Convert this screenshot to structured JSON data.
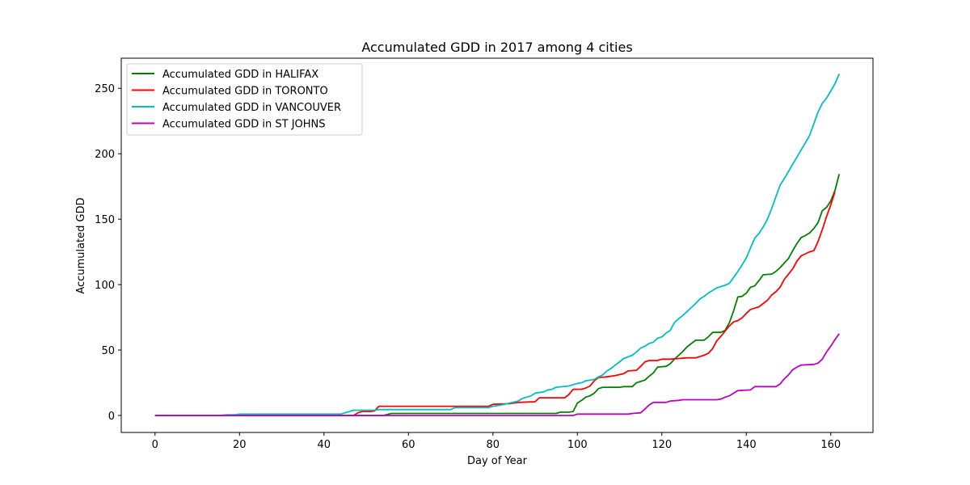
{
  "chart_data": {
    "type": "line",
    "title": "Accumulated GDD in 2017 among 4 cities",
    "xlabel": "Day of Year",
    "ylabel": "Accumulated GDD",
    "xlim": [
      -8,
      170
    ],
    "ylim": [
      -13,
      273
    ],
    "xticks": [
      0,
      20,
      40,
      60,
      80,
      100,
      120,
      140,
      160
    ],
    "yticks": [
      0,
      50,
      100,
      150,
      200,
      250
    ],
    "grid": false,
    "legend_position": "top-left",
    "series": [
      {
        "name": "Accumulated GDD in  HALIFAX",
        "color": "#008000",
        "points": [
          [
            0,
            0
          ],
          [
            54,
            0
          ],
          [
            56,
            1.5
          ],
          [
            95,
            1.5
          ],
          [
            96,
            2.5
          ],
          [
            98,
            2.5
          ],
          [
            99,
            3
          ],
          [
            100,
            9.5
          ],
          [
            101,
            11.5
          ],
          [
            102,
            14
          ],
          [
            103,
            15
          ],
          [
            104,
            17
          ],
          [
            105,
            20.5
          ],
          [
            106,
            21.5
          ],
          [
            110,
            21.5
          ],
          [
            111,
            22
          ],
          [
            113,
            22
          ],
          [
            114,
            25
          ],
          [
            116,
            27
          ],
          [
            117,
            30
          ],
          [
            118,
            32.5
          ],
          [
            119,
            37
          ],
          [
            121,
            37.5
          ],
          [
            122,
            39.5
          ],
          [
            123,
            43
          ],
          [
            124,
            46
          ],
          [
            125,
            49
          ],
          [
            126,
            52.5
          ],
          [
            127,
            55
          ],
          [
            128,
            57.5
          ],
          [
            130,
            57.5
          ],
          [
            131,
            60
          ],
          [
            132,
            63.5
          ],
          [
            134,
            63.5
          ],
          [
            135,
            65
          ],
          [
            136,
            71
          ],
          [
            137,
            80
          ],
          [
            138,
            90.5
          ],
          [
            139,
            91
          ],
          [
            140,
            93.5
          ],
          [
            141,
            98
          ],
          [
            142,
            99
          ],
          [
            143,
            103
          ],
          [
            144,
            107.5
          ],
          [
            146,
            108
          ],
          [
            147,
            110
          ],
          [
            148,
            113
          ],
          [
            149,
            116.5
          ],
          [
            150,
            120
          ],
          [
            151,
            126
          ],
          [
            152,
            131.5
          ],
          [
            153,
            136
          ],
          [
            154,
            137.5
          ],
          [
            155,
            139.5
          ],
          [
            156,
            143
          ],
          [
            157,
            147.5
          ],
          [
            158,
            156.5
          ],
          [
            159,
            159
          ],
          [
            160,
            164
          ],
          [
            161,
            172
          ],
          [
            162,
            184.5
          ]
        ]
      },
      {
        "name": "Accumulated GDD in  TORONTO",
        "color": "#ff0000",
        "points": [
          [
            0,
            0
          ],
          [
            47,
            0
          ],
          [
            48,
            2
          ],
          [
            49,
            3
          ],
          [
            51,
            3
          ],
          [
            52,
            3.5
          ],
          [
            53,
            7
          ],
          [
            79,
            7
          ],
          [
            80,
            8.5
          ],
          [
            84,
            9
          ],
          [
            86,
            10
          ],
          [
            90,
            10.5
          ],
          [
            91,
            13.5
          ],
          [
            97,
            13.5
          ],
          [
            98,
            16
          ],
          [
            99,
            20
          ],
          [
            101,
            20
          ],
          [
            102,
            21
          ],
          [
            103,
            22.5
          ],
          [
            104,
            26.5
          ],
          [
            105,
            29
          ],
          [
            107,
            29.5
          ],
          [
            109,
            30.5
          ],
          [
            111,
            32
          ],
          [
            112,
            34
          ],
          [
            114,
            34.5
          ],
          [
            115,
            37.5
          ],
          [
            116,
            41
          ],
          [
            117,
            42
          ],
          [
            119,
            42
          ],
          [
            120,
            43
          ],
          [
            122,
            43
          ],
          [
            124,
            43.5
          ],
          [
            126,
            44
          ],
          [
            128,
            44
          ],
          [
            129,
            45
          ],
          [
            130,
            46
          ],
          [
            131,
            47.5
          ],
          [
            132,
            51
          ],
          [
            133,
            57
          ],
          [
            134,
            60.5
          ],
          [
            135,
            64.5
          ],
          [
            136,
            68.5
          ],
          [
            137,
            71.5
          ],
          [
            138,
            72.5
          ],
          [
            139,
            74.5
          ],
          [
            140,
            78
          ],
          [
            141,
            81
          ],
          [
            142,
            82
          ],
          [
            143,
            83
          ],
          [
            144,
            85.5
          ],
          [
            145,
            88
          ],
          [
            146,
            92
          ],
          [
            147,
            94.5
          ],
          [
            148,
            98
          ],
          [
            149,
            104
          ],
          [
            150,
            108
          ],
          [
            151,
            112
          ],
          [
            152,
            118
          ],
          [
            153,
            122
          ],
          [
            154,
            123.5
          ],
          [
            155,
            125
          ],
          [
            156,
            126
          ],
          [
            157,
            133
          ],
          [
            158,
            142
          ],
          [
            159,
            152
          ],
          [
            160,
            161
          ],
          [
            161,
            171
          ]
        ]
      },
      {
        "name": "Accumulated GDD in  VANCOUVER",
        "color": "#00bfbf",
        "points": [
          [
            0,
            0
          ],
          [
            15,
            0
          ],
          [
            17,
            0.5
          ],
          [
            19,
            0.5
          ],
          [
            20,
            1
          ],
          [
            44,
            1
          ],
          [
            46,
            3
          ],
          [
            47,
            4
          ],
          [
            52,
            4
          ],
          [
            53,
            4.5
          ],
          [
            70,
            4.5
          ],
          [
            71,
            6
          ],
          [
            79,
            6
          ],
          [
            80,
            7
          ],
          [
            82,
            8
          ],
          [
            84,
            9.5
          ],
          [
            86,
            11
          ],
          [
            87,
            13
          ],
          [
            88,
            14
          ],
          [
            89,
            15
          ],
          [
            90,
            17
          ],
          [
            92,
            18
          ],
          [
            93,
            19.5
          ],
          [
            94,
            20
          ],
          [
            95,
            21.5
          ],
          [
            98,
            22.5
          ],
          [
            100,
            24.5
          ],
          [
            101,
            25
          ],
          [
            102,
            26.5
          ],
          [
            104,
            27.5
          ],
          [
            105,
            29.5
          ],
          [
            106,
            31
          ],
          [
            107,
            34
          ],
          [
            108,
            36
          ],
          [
            109,
            38.5
          ],
          [
            110,
            41
          ],
          [
            111,
            43.5
          ],
          [
            113,
            46
          ],
          [
            114,
            48.5
          ],
          [
            115,
            51.5
          ],
          [
            116,
            53
          ],
          [
            117,
            55
          ],
          [
            118,
            56
          ],
          [
            119,
            59
          ],
          [
            120,
            60
          ],
          [
            121,
            63
          ],
          [
            122,
            65
          ],
          [
            123,
            71
          ],
          [
            124,
            74
          ],
          [
            125,
            76.5
          ],
          [
            126,
            79.5
          ],
          [
            127,
            82.5
          ],
          [
            128,
            85.5
          ],
          [
            129,
            89
          ],
          [
            130,
            91
          ],
          [
            131,
            93.5
          ],
          [
            132,
            95.5
          ],
          [
            133,
            97.5
          ],
          [
            134,
            98.5
          ],
          [
            135,
            99.5
          ],
          [
            136,
            101
          ],
          [
            137,
            105.5
          ],
          [
            138,
            110
          ],
          [
            139,
            115
          ],
          [
            140,
            120.5
          ],
          [
            141,
            128
          ],
          [
            142,
            135.5
          ],
          [
            143,
            139
          ],
          [
            144,
            144
          ],
          [
            145,
            150
          ],
          [
            146,
            158
          ],
          [
            147,
            167
          ],
          [
            148,
            176
          ],
          [
            149,
            181
          ],
          [
            150,
            186.5
          ],
          [
            151,
            192
          ],
          [
            152,
            197.5
          ],
          [
            153,
            203
          ],
          [
            154,
            208.5
          ],
          [
            155,
            214
          ],
          [
            156,
            223
          ],
          [
            157,
            232
          ],
          [
            158,
            238.5
          ],
          [
            159,
            242.5
          ],
          [
            160,
            248
          ],
          [
            161,
            253.5
          ],
          [
            162,
            261
          ]
        ]
      },
      {
        "name": "Accumulated GDD in ST JOHNS",
        "color": "#bf00bf",
        "points": [
          [
            0,
            0
          ],
          [
            99,
            0
          ],
          [
            100,
            1
          ],
          [
            112,
            1
          ],
          [
            113,
            1.5
          ],
          [
            115,
            2
          ],
          [
            116,
            5
          ],
          [
            117,
            8
          ],
          [
            118,
            10
          ],
          [
            121,
            10
          ],
          [
            122,
            11
          ],
          [
            124,
            11.5
          ],
          [
            125,
            12
          ],
          [
            133,
            12
          ],
          [
            134,
            12.5
          ],
          [
            135,
            14
          ],
          [
            136,
            15
          ],
          [
            137,
            17
          ],
          [
            138,
            19
          ],
          [
            141,
            19.5
          ],
          [
            142,
            22
          ],
          [
            147,
            22
          ],
          [
            148,
            24
          ],
          [
            149,
            28
          ],
          [
            150,
            31
          ],
          [
            151,
            35
          ],
          [
            152,
            37
          ],
          [
            153,
            38.5
          ],
          [
            156,
            39
          ],
          [
            157,
            40
          ],
          [
            158,
            43
          ],
          [
            159,
            48.5
          ],
          [
            160,
            53
          ],
          [
            161,
            58
          ],
          [
            162,
            62.5
          ]
        ]
      }
    ]
  }
}
